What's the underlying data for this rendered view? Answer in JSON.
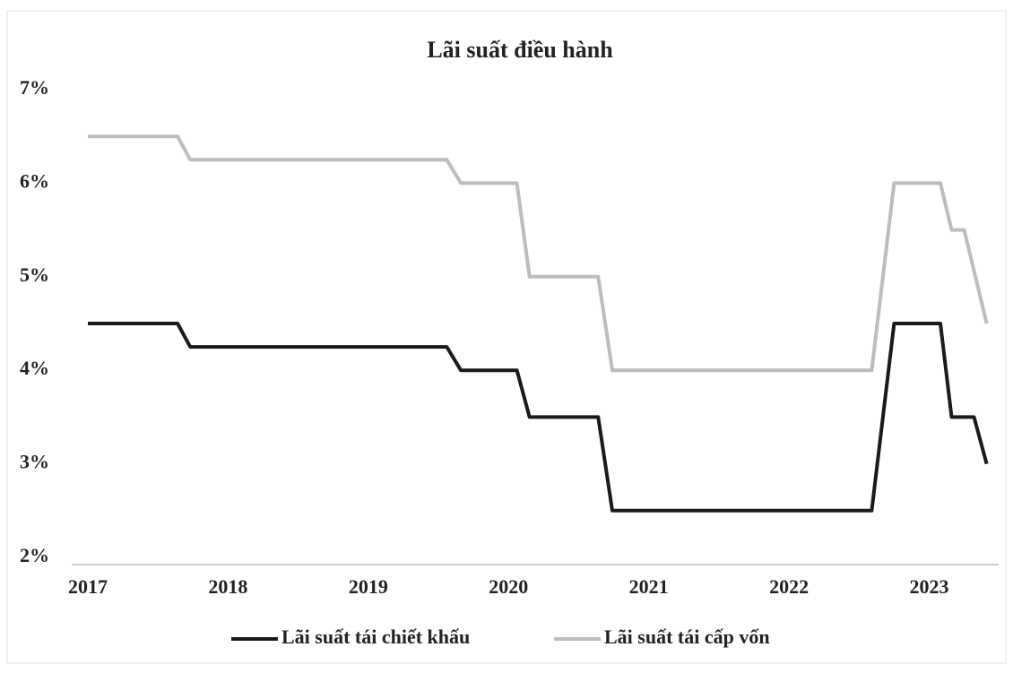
{
  "chart_data": {
    "type": "line",
    "title": "Lãi suất điều hành",
    "xlim": [
      2017,
      2023.47
    ],
    "xticks": [
      2017,
      2018,
      2019,
      2020,
      2021,
      2022,
      2023
    ],
    "ylim": [
      2,
      7
    ],
    "yticks": [
      {
        "value": 2,
        "label": "2%"
      },
      {
        "value": 3,
        "label": "3%"
      },
      {
        "value": 4,
        "label": "4%"
      },
      {
        "value": 5,
        "label": "5%"
      },
      {
        "value": 6,
        "label": "6%"
      },
      {
        "value": 7,
        "label": "7%"
      }
    ],
    "legend": "bottom",
    "series": [
      {
        "name": "Lãi suất tái chiết khấu",
        "color": "#1a1a1a",
        "x": [
          2017,
          2017.64,
          2017.73,
          2019.56,
          2019.66,
          2020.06,
          2020.15,
          2020.64,
          2020.74,
          2022.59,
          2022.75,
          2023.08,
          2023.16,
          2023.32,
          2023.41
        ],
        "values": [
          4.5,
          4.5,
          4.25,
          4.25,
          4.0,
          4.0,
          3.5,
          3.5,
          2.5,
          2.5,
          4.5,
          4.5,
          3.5,
          3.5,
          3.0
        ]
      },
      {
        "name": "Lãi suất tái cấp vốn",
        "color": "#bdbdbd",
        "x": [
          2017,
          2017.64,
          2017.73,
          2019.56,
          2019.66,
          2020.06,
          2020.15,
          2020.64,
          2020.74,
          2022.59,
          2022.75,
          2023.08,
          2023.16,
          2023.25,
          2023.41
        ],
        "values": [
          6.5,
          6.5,
          6.25,
          6.25,
          6.0,
          6.0,
          5.0,
          5.0,
          4.0,
          4.0,
          6.0,
          6.0,
          5.5,
          5.5,
          4.5
        ]
      }
    ]
  }
}
